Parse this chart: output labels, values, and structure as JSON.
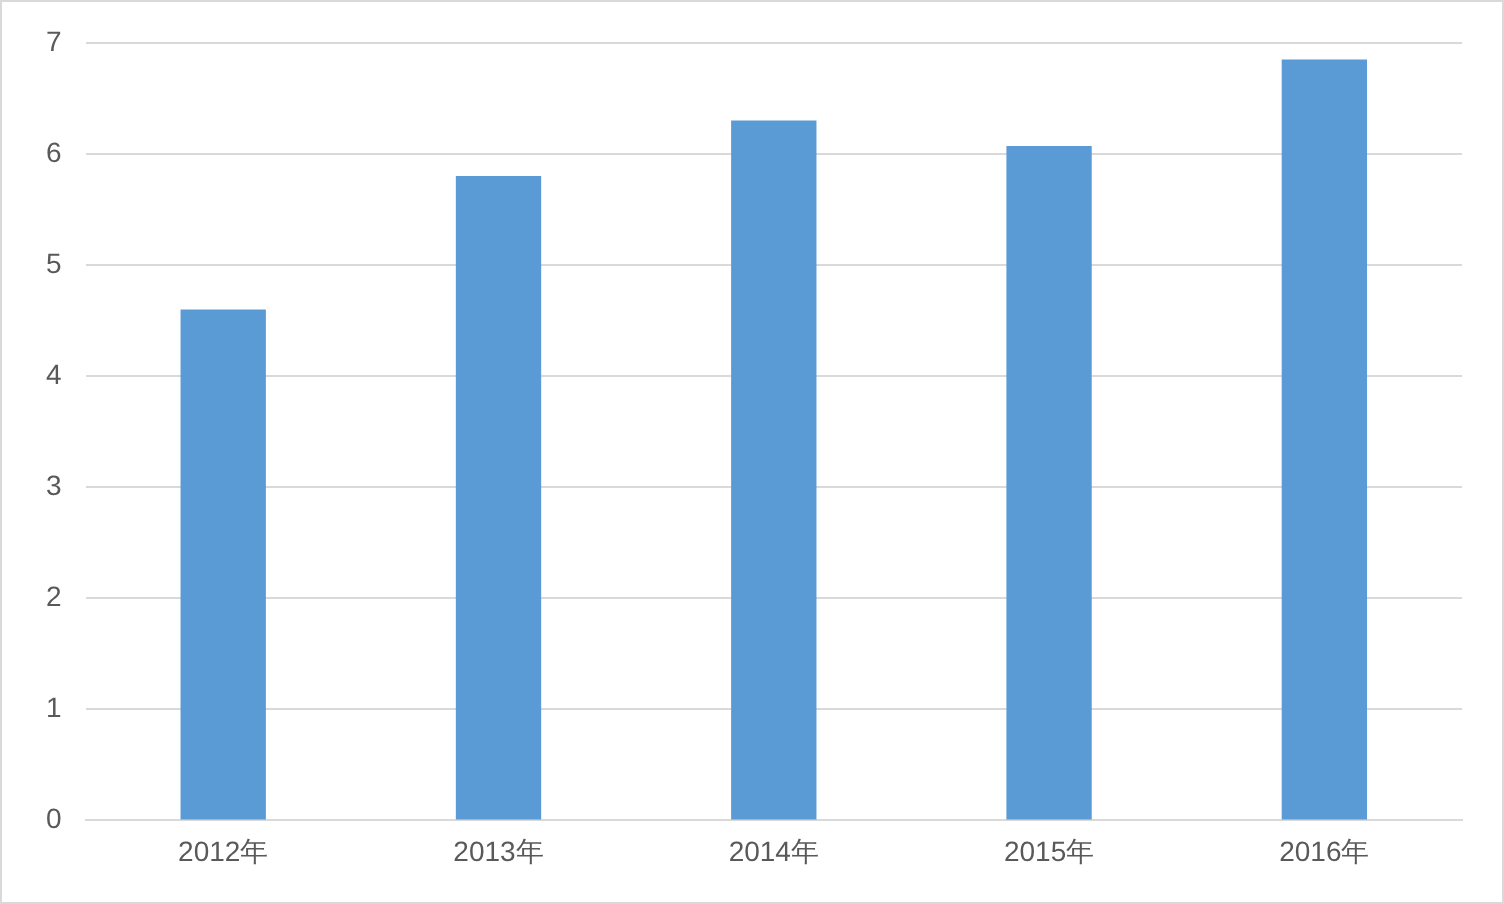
{
  "chart_data": {
    "type": "bar",
    "categories": [
      "2012年",
      "2013年",
      "2014年",
      "2015年",
      "2016年"
    ],
    "values": [
      4.6,
      5.8,
      6.3,
      6.07,
      6.85
    ],
    "color": "#5b9bd5",
    "ylim": [
      0,
      7
    ],
    "yticks": [
      0,
      1,
      2,
      3,
      4,
      5,
      6,
      7
    ],
    "grid": "y",
    "legend": false
  }
}
